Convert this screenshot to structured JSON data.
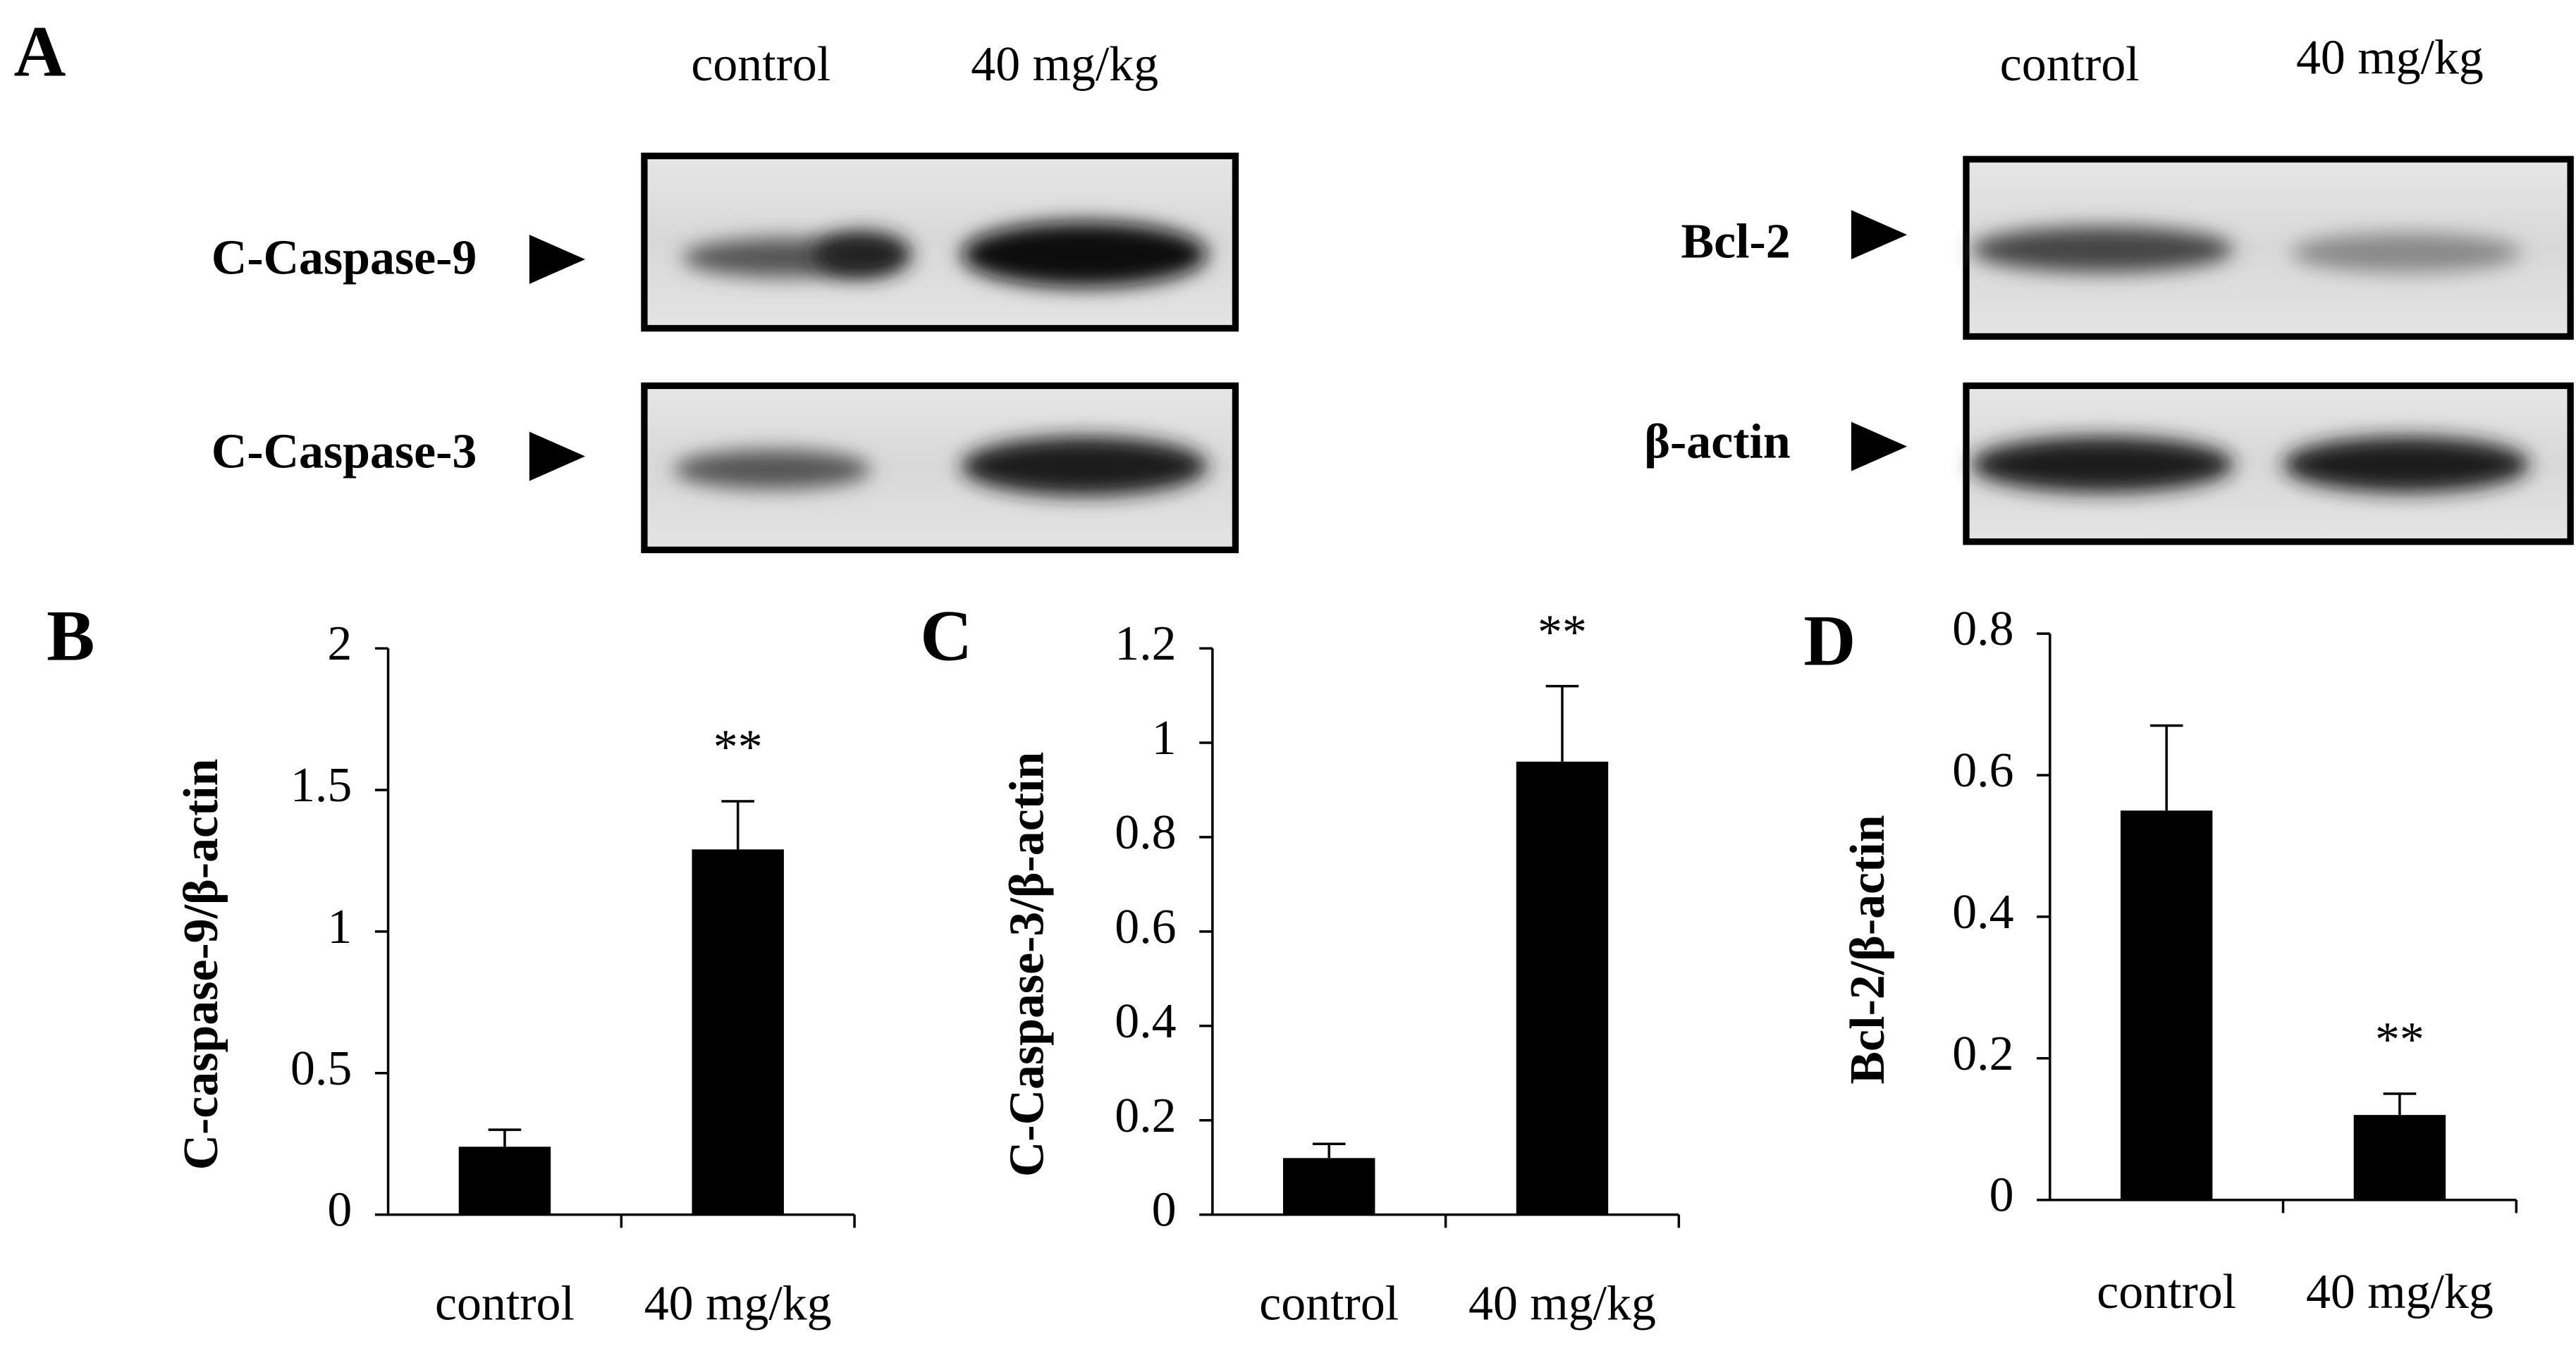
{
  "panel_a": {
    "label": "A",
    "left": {
      "columns": [
        "control",
        "40 mg/kg"
      ],
      "rows": [
        "C-Caspase-9",
        "C-Caspase-3"
      ]
    },
    "right": {
      "columns": [
        "control",
        "40 mg/kg"
      ],
      "rows": [
        "Bcl-2",
        "β-actin"
      ]
    }
  },
  "chart_data": [
    {
      "type": "bar",
      "label": "B",
      "y_label": "C-caspase-9/β-actin",
      "categories": [
        "control",
        "40 mg/kg"
      ],
      "values": [
        0.24,
        1.29
      ],
      "errors": [
        0.06,
        0.17
      ],
      "color": "#000000",
      "annotation": {
        "text": "**",
        "index": 1
      },
      "ylim": [
        0,
        2
      ],
      "yticks": [
        0,
        0.5,
        1,
        1.5,
        2
      ]
    },
    {
      "type": "bar",
      "label": "C",
      "y_label": "C-Caspase-3/β-actin",
      "categories": [
        "control",
        "40 mg/kg"
      ],
      "values": [
        0.12,
        0.96
      ],
      "errors": [
        0.03,
        0.16
      ],
      "color": "#000000",
      "annotation": {
        "text": "**",
        "index": 1
      },
      "ylim": [
        0,
        1.2
      ],
      "yticks": [
        0,
        0.2,
        0.4,
        0.6,
        0.8,
        1,
        1.2
      ]
    },
    {
      "type": "bar",
      "label": "D",
      "y_label": "Bcl-2/β-actin",
      "categories": [
        "control",
        "40 mg/kg"
      ],
      "values": [
        0.55,
        0.12
      ],
      "errors": [
        0.12,
        0.03
      ],
      "color": "#000000",
      "annotation": {
        "text": "**",
        "index": 1
      },
      "ylim": [
        0,
        0.8
      ],
      "yticks": [
        0,
        0.2,
        0.4,
        0.6,
        0.8
      ]
    }
  ]
}
